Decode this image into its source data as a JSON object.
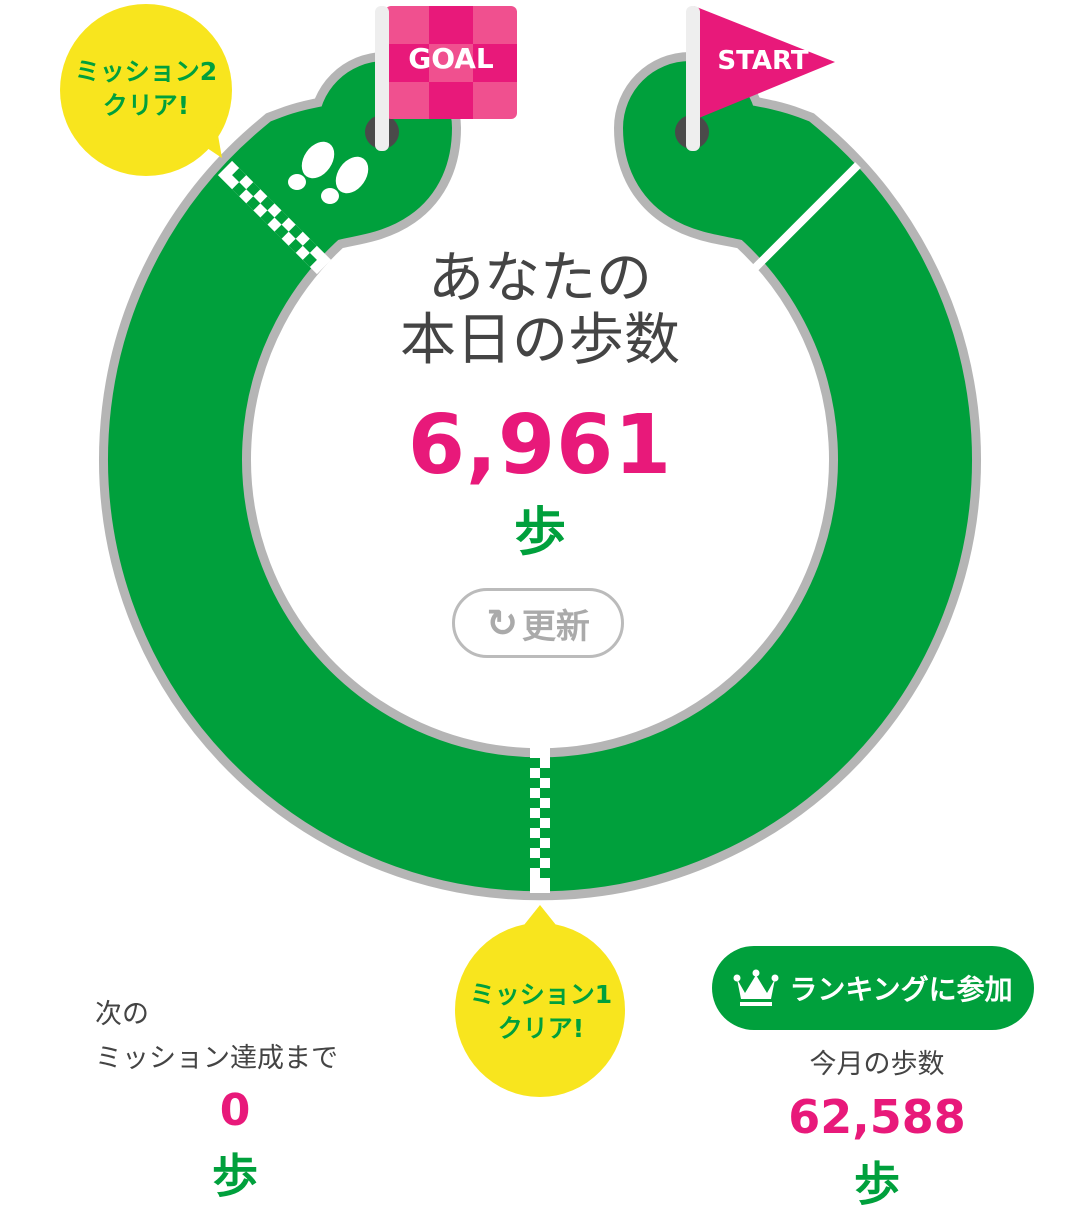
{
  "flags": {
    "goal_label": "GOAL",
    "start_label": "START"
  },
  "missions": {
    "mission2_bubble": [
      "ミッション2",
      "クリア!"
    ],
    "mission1_bubble": [
      "ミッション1",
      "クリア!"
    ]
  },
  "today": {
    "title_line1": "あなたの",
    "title_line2": "本日の歩数",
    "steps": "6,961",
    "unit": "歩",
    "refresh_label": "更新"
  },
  "next_mission": {
    "label_line1": "次の",
    "label_line2": "ミッション達成まで",
    "steps": "0",
    "unit": "歩"
  },
  "monthly": {
    "ranking_button": "ランキングに参加",
    "label": "今月の歩数",
    "steps": "62,588",
    "unit": "歩"
  },
  "colors": {
    "track": "#00a03c",
    "accent_pink": "#e8197a",
    "bubble_yellow": "#f8e51e",
    "border_gray": "#b5b5b5"
  },
  "icons": [
    "footprints-icon",
    "refresh-icon",
    "crown-icon",
    "goal-flag-icon",
    "start-flag-icon"
  ]
}
